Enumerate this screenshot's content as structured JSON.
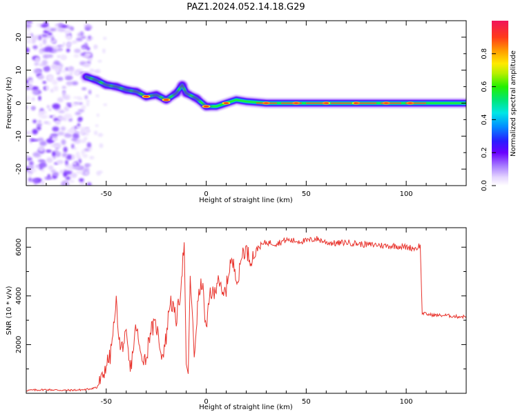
{
  "title": "PAZ1.2024.052.14.18.G29",
  "chart_data": [
    {
      "type": "heatmap",
      "xlabel": "Height of straight line (km)",
      "ylabel": "Frequency (Hz)",
      "xlim": [
        -90,
        130
      ],
      "ylim": [
        -25,
        25
      ],
      "xticks": [
        -50,
        0,
        50,
        100
      ],
      "yticks": [
        -20,
        -10,
        0,
        10,
        20
      ],
      "colorbar": {
        "label": "Normalized spectral amplitude",
        "range": [
          0,
          1
        ],
        "ticks": [
          "0.0",
          "0.2",
          "0.4",
          "0.6",
          "0.8"
        ]
      },
      "ridge": [
        [
          -60,
          8
        ],
        [
          -55,
          7
        ],
        [
          -50,
          5.5
        ],
        [
          -45,
          5
        ],
        [
          -40,
          4
        ],
        [
          -35,
          3.5
        ],
        [
          -30,
          2
        ],
        [
          -25,
          2.5
        ],
        [
          -20,
          1
        ],
        [
          -15,
          3
        ],
        [
          -12,
          5.5
        ],
        [
          -10,
          3
        ],
        [
          -5,
          1.5
        ],
        [
          0,
          -1
        ],
        [
          5,
          -1
        ],
        [
          10,
          0
        ],
        [
          15,
          1
        ],
        [
          20,
          0.5
        ],
        [
          30,
          0
        ],
        [
          50,
          0
        ],
        [
          75,
          0
        ],
        [
          100,
          0
        ],
        [
          130,
          0
        ]
      ]
    },
    {
      "type": "line",
      "xlabel": "Height of straight line (km)",
      "ylabel": "SNR (10 * v/v)",
      "xlim": [
        -90,
        130
      ],
      "ylim": [
        0,
        6800
      ],
      "xticks": [
        -50,
        0,
        50,
        100
      ],
      "yticks": [
        2000,
        4000,
        6000
      ],
      "series": [
        {
          "color": "#e8312a",
          "points": [
            [
              -90,
              120
            ],
            [
              -80,
              150
            ],
            [
              -70,
              120
            ],
            [
              -60,
              150
            ],
            [
              -55,
              250
            ],
            [
              -52,
              600
            ],
            [
              -50,
              1200
            ],
            [
              -48,
              1500
            ],
            [
              -46,
              2900
            ],
            [
              -45,
              3700
            ],
            [
              -43,
              1800
            ],
            [
              -40,
              2300
            ],
            [
              -38,
              900
            ],
            [
              -35,
              2800
            ],
            [
              -33,
              1600
            ],
            [
              -30,
              1400
            ],
            [
              -28,
              2600
            ],
            [
              -25,
              2800
            ],
            [
              -22,
              1500
            ],
            [
              -20,
              2300
            ],
            [
              -18,
              3900
            ],
            [
              -15,
              3000
            ],
            [
              -13,
              4100
            ],
            [
              -11,
              6200
            ],
            [
              -10,
              1200
            ],
            [
              -9,
              800
            ],
            [
              -8,
              4900
            ],
            [
              -6,
              1500
            ],
            [
              -4,
              3900
            ],
            [
              -2,
              4600
            ],
            [
              0,
              2500
            ],
            [
              2,
              4200
            ],
            [
              4,
              4000
            ],
            [
              6,
              4900
            ],
            [
              8,
              3900
            ],
            [
              10,
              4300
            ],
            [
              12,
              5400
            ],
            [
              14,
              5200
            ],
            [
              16,
              4600
            ],
            [
              18,
              5800
            ],
            [
              20,
              5900
            ],
            [
              22,
              5500
            ],
            [
              24,
              5700
            ],
            [
              26,
              6000
            ],
            [
              28,
              6100
            ],
            [
              30,
              6200
            ],
            [
              35,
              6150
            ],
            [
              40,
              6300
            ],
            [
              45,
              6250
            ],
            [
              50,
              6250
            ],
            [
              55,
              6350
            ],
            [
              60,
              6200
            ],
            [
              65,
              6150
            ],
            [
              70,
              6200
            ],
            [
              75,
              6150
            ],
            [
              80,
              6100
            ],
            [
              85,
              6100
            ],
            [
              90,
              6050
            ],
            [
              95,
              6050
            ],
            [
              100,
              6000
            ],
            [
              105,
              5950
            ],
            [
              107,
              6100
            ],
            [
              108,
              3300
            ],
            [
              110,
              3250
            ],
            [
              115,
              3200
            ],
            [
              120,
              3200
            ],
            [
              125,
              3150
            ],
            [
              130,
              3150
            ]
          ]
        }
      ]
    }
  ]
}
